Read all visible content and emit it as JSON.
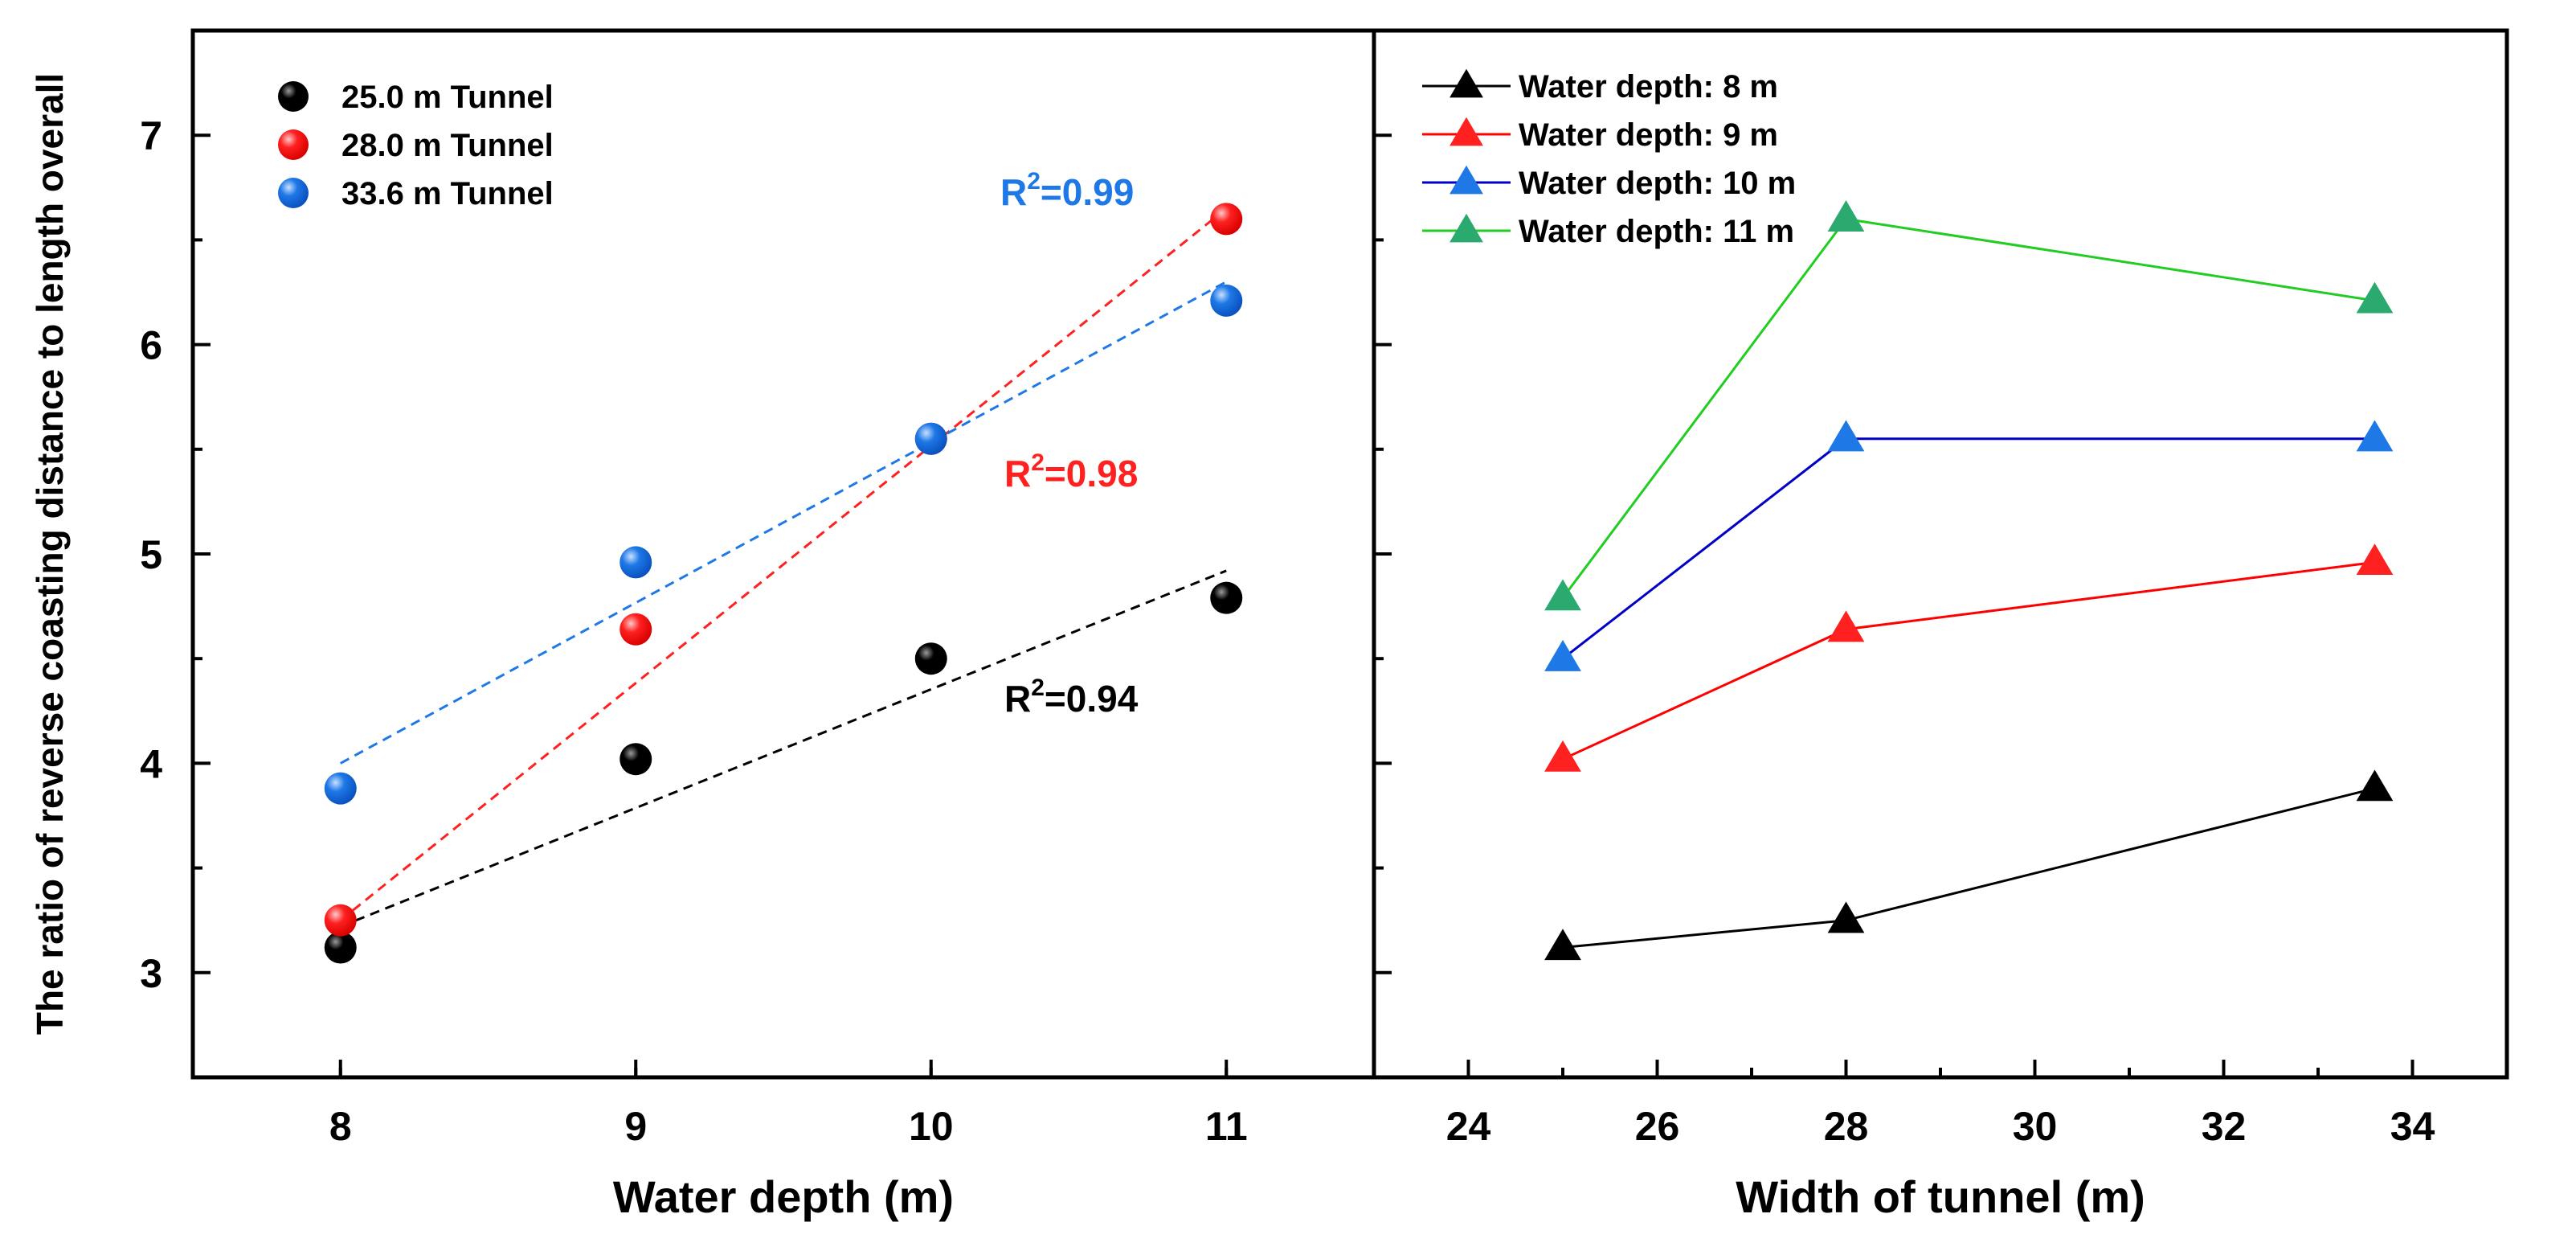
{
  "chart_data": [
    {
      "type": "scatter",
      "panel": "left",
      "xlabel": "Water depth (m)",
      "ylabel": "The ratio of reverse coasting distance to length overall",
      "xlim": [
        7.5,
        11.5
      ],
      "ylim": [
        2.5,
        7.5
      ],
      "xticks": [
        "8",
        "9",
        "10",
        "11"
      ],
      "yticks": [
        "3",
        "4",
        "5",
        "6",
        "7"
      ],
      "grid": false,
      "legend_position": "top-left",
      "x": [
        8,
        9,
        10,
        11
      ],
      "series": [
        {
          "name": "25.0 m Tunnel",
          "color": "#000000",
          "values": [
            3.12,
            4.02,
            4.5,
            4.79
          ],
          "fit": {
            "x": [
              8,
              11
            ],
            "y": [
              3.22,
              4.92
            ],
            "r2_label": "R",
            "r2_sup": "2",
            "r2_value": "=0.94"
          }
        },
        {
          "name": "28.0 m Tunnel",
          "color": "#ff2020",
          "values": [
            3.25,
            4.64,
            5.55,
            6.6
          ],
          "fit": {
            "x": [
              8,
              11
            ],
            "y": [
              3.25,
              6.65
            ],
            "r2_label": "R",
            "r2_sup": "2",
            "r2_value": "=0.98"
          }
        },
        {
          "name": "33.6 m Tunnel",
          "color": "#1e78e6",
          "values": [
            3.88,
            4.96,
            5.55,
            6.21
          ],
          "fit": {
            "x": [
              8,
              11
            ],
            "y": [
              4.0,
              6.3
            ],
            "r2_label": "R",
            "r2_sup": "2",
            "r2_value": "=0.99"
          }
        }
      ]
    },
    {
      "type": "line",
      "panel": "right",
      "xlabel": "Width of tunnel (m)",
      "xlim": [
        23,
        35
      ],
      "ylim": [
        2.5,
        7.5
      ],
      "xticks": [
        "24",
        "26",
        "28",
        "30",
        "32",
        "34"
      ],
      "grid": false,
      "legend_position": "top-left",
      "x": [
        25,
        28,
        33.6
      ],
      "series": [
        {
          "name": "Water depth: 8 m",
          "color": "#000000",
          "line_color": "#000000",
          "values": [
            3.12,
            3.25,
            3.88
          ]
        },
        {
          "name": "Water depth: 9 m",
          "color": "#ff2020",
          "line_color": "#ff0000",
          "values": [
            4.02,
            4.64,
            4.96
          ]
        },
        {
          "name": "Water depth: 10 m",
          "color": "#1e78e6",
          "line_color": "#0000c8",
          "values": [
            4.5,
            5.55,
            5.55
          ]
        },
        {
          "name": "Water depth: 11 m",
          "color": "#2aaa6e",
          "line_color": "#22cc22",
          "values": [
            4.79,
            6.6,
            6.21
          ]
        }
      ]
    }
  ]
}
